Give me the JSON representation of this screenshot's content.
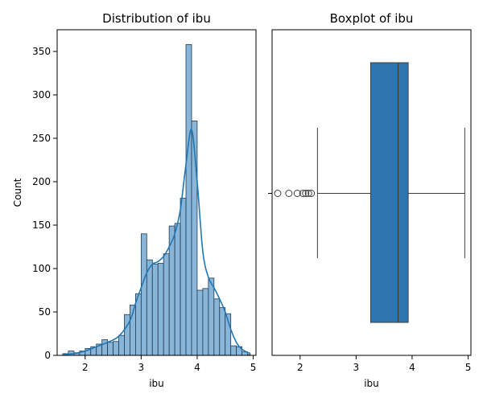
{
  "chart_data": [
    {
      "type": "histogram",
      "title": "Distribution of ibu",
      "xlabel": "ibu",
      "ylabel": "Count",
      "xlim": [
        1.5,
        5.05
      ],
      "ylim": [
        0,
        375
      ],
      "xticks": [
        2,
        3,
        4,
        5
      ],
      "yticks": [
        0,
        50,
        100,
        150,
        200,
        250,
        300,
        350
      ],
      "bin_edges": [
        1.6,
        1.7,
        1.8,
        1.9,
        2.0,
        2.1,
        2.2,
        2.3,
        2.4,
        2.5,
        2.6,
        2.7,
        2.8,
        2.9,
        3.0,
        3.1,
        3.2,
        3.3,
        3.4,
        3.5,
        3.6,
        3.7,
        3.8,
        3.9,
        4.0,
        4.1,
        4.2,
        4.3,
        4.4,
        4.5,
        4.6,
        4.7,
        4.8,
        4.9,
        4.95
      ],
      "counts": [
        2,
        5,
        3,
        5,
        8,
        10,
        13,
        18,
        15,
        16,
        23,
        47,
        58,
        71,
        140,
        110,
        105,
        106,
        117,
        149,
        152,
        181,
        358,
        270,
        75,
        77,
        89,
        65,
        55,
        48,
        11,
        10,
        4,
        1
      ],
      "kde": {
        "x": [
          1.6,
          1.8,
          2.0,
          2.2,
          2.4,
          2.6,
          2.8,
          2.9,
          3.0,
          3.1,
          3.2,
          3.3,
          3.4,
          3.5,
          3.6,
          3.7,
          3.8,
          3.9,
          4.0,
          4.1,
          4.2,
          4.3,
          4.4,
          4.5,
          4.6,
          4.7,
          4.8,
          4.95
        ],
        "y": [
          1,
          2,
          5,
          10,
          15,
          22,
          40,
          60,
          78,
          95,
          105,
          108,
          114,
          125,
          140,
          168,
          220,
          260,
          200,
          120,
          90,
          78,
          65,
          50,
          30,
          15,
          7,
          2
        ]
      },
      "grid": false,
      "colors": {
        "bar_fill": "#89b5d8",
        "bar_edge": "#1f3b52",
        "kde_line": "#1f77b4"
      }
    },
    {
      "type": "boxplot",
      "title": "Boxplot of ibu",
      "xlabel": "ibu",
      "xlim": [
        1.5,
        5.05
      ],
      "xticks": [
        2,
        3,
        4,
        5
      ],
      "whisker_low": 2.31,
      "q1": 3.26,
      "median": 3.75,
      "q3": 3.93,
      "whisker_high": 4.94,
      "outliers": [
        1.6,
        1.8,
        1.95,
        2.05,
        2.1,
        2.15,
        2.2
      ],
      "grid": false,
      "colors": {
        "box_fill": "#2e75b0",
        "line": "#3d3d3d"
      }
    }
  ]
}
